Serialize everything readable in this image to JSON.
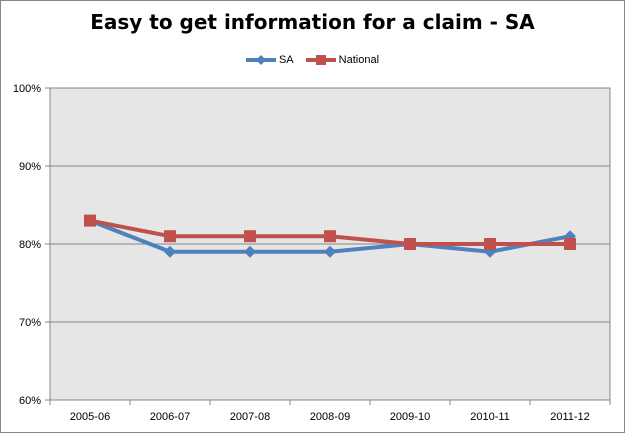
{
  "chart_data": {
    "type": "line",
    "title": "Easy to get information for a claim - SA",
    "categories": [
      "2005-06",
      "2006-07",
      "2007-08",
      "2008-09",
      "2009-10",
      "2010-11",
      "2011-12"
    ],
    "series": [
      {
        "name": "SA",
        "color": "#4F81BD",
        "marker": "diamond",
        "values": [
          83,
          79,
          79,
          79,
          80,
          79,
          81
        ]
      },
      {
        "name": "National",
        "color": "#C0504D",
        "marker": "square",
        "values": [
          83,
          81,
          81,
          81,
          80,
          80,
          80
        ]
      }
    ],
    "xlabel": "",
    "ylabel": "",
    "ylim": [
      60,
      100
    ],
    "yticks": [
      "60%",
      "70%",
      "80%",
      "90%",
      "100%"
    ],
    "grid": true,
    "legend_position": "top",
    "plot_background": "#E6E6E6"
  }
}
